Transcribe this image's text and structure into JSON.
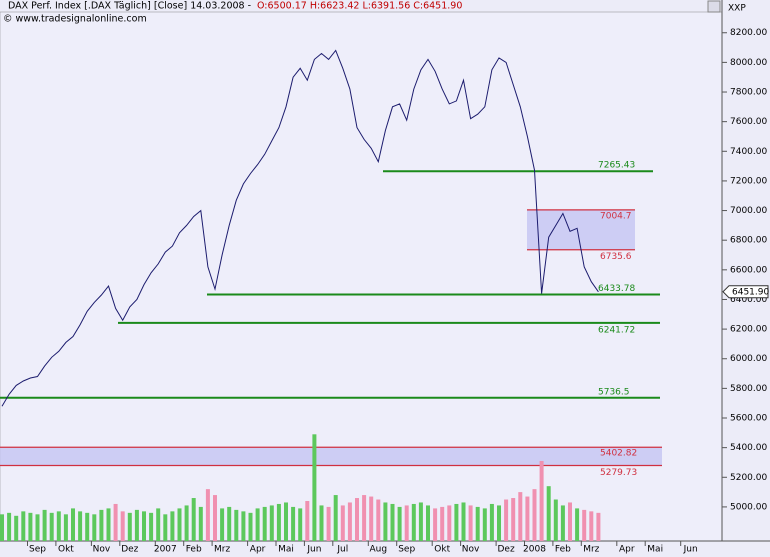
{
  "chart_data": {
    "type": "line",
    "title": "DAX Perf. Index [.DAX  Täglich] [Close] 14.03.2008 -",
    "ohlc": "O:6500.17 H:6623.42 L:6391.56 C:6451.90",
    "source": "© www.tradesignalonline.com",
    "axis_unit": "XXP",
    "last_label": "6451.90",
    "categories": [
      null,
      null,
      null,
      null,
      null,
      "Sep",
      null,
      null,
      null,
      "Okt",
      null,
      null,
      null,
      null,
      "Nov",
      null,
      null,
      null,
      "Dez",
      null,
      null,
      null,
      null,
      "2007",
      null,
      null,
      null,
      "Feb",
      null,
      null,
      null,
      "Mrz",
      null,
      null,
      null,
      null,
      "Apr",
      null,
      null,
      null,
      "Mai",
      null,
      null,
      null,
      "Jun",
      null,
      null,
      null,
      "Jul",
      null,
      null,
      null,
      null,
      "Aug",
      null,
      null,
      null,
      "Sep",
      null,
      null,
      null,
      null,
      "Okt",
      null,
      null,
      null,
      "Nov",
      null,
      null,
      null,
      null,
      "Dez",
      null,
      null,
      null,
      "2008",
      null,
      null,
      null,
      "Feb",
      null,
      null,
      null,
      "Mrz",
      null,
      null,
      null,
      null,
      "Apr",
      null,
      null,
      null,
      "Mai",
      null,
      null,
      null,
      null,
      "Jun",
      null,
      null
    ],
    "series": [
      {
        "name": "DAX",
        "color": "#1c1c6e",
        "values": [
          5680,
          5760,
          5820,
          5850,
          5870,
          5880,
          5950,
          6010,
          6050,
          6110,
          6150,
          6230,
          6320,
          6380,
          6430,
          6490,
          6340,
          6260,
          6350,
          6400,
          6500,
          6580,
          6640,
          6720,
          6760,
          6850,
          6900,
          6960,
          7000,
          6620,
          6470,
          6700,
          6900,
          7070,
          7180,
          7250,
          7310,
          7380,
          7470,
          7560,
          7700,
          7900,
          7960,
          7880,
          8020,
          8060,
          8020,
          8080,
          7960,
          7820,
          7560,
          7480,
          7420,
          7330,
          7540,
          7700,
          7720,
          7610,
          7820,
          7950,
          8020,
          7940,
          7820,
          7720,
          7740,
          7880,
          7620,
          7650,
          7700,
          7950,
          8030,
          8000,
          7850,
          7700,
          7500,
          7273,
          6440,
          6820,
          6900,
          6980,
          6860,
          6880,
          6620,
          6520,
          6451.9,
          null,
          null,
          null,
          null,
          null,
          null,
          null,
          null,
          null,
          null,
          null,
          null,
          null,
          null,
          null
        ]
      },
      {
        "name": "Volume",
        "up_color": "#5cc85c",
        "down_color": "#f090b0",
        "values": [
          4950,
          4960,
          4940,
          4970,
          4960,
          4950,
          4980,
          4960,
          4970,
          4950,
          4990,
          4970,
          4960,
          4950,
          4980,
          4990,
          5020,
          4970,
          4960,
          4980,
          4970,
          4960,
          4990,
          4950,
          4970,
          4990,
          5010,
          5060,
          5000,
          5120,
          5080,
          4990,
          5000,
          4980,
          4970,
          4960,
          4990,
          5000,
          5010,
          5020,
          5030,
          5000,
          4990,
          5040,
          5490,
          5010,
          5000,
          5080,
          5010,
          5030,
          5060,
          5080,
          5070,
          5050,
          5030,
          5020,
          5000,
          5010,
          5020,
          5030,
          5010,
          4990,
          5000,
          5010,
          5020,
          5030,
          5010,
          5000,
          4990,
          5020,
          5010,
          5050,
          5060,
          5100,
          5070,
          5120,
          5310,
          5140,
          5050,
          5010,
          5030,
          4990,
          4980,
          4970,
          4960,
          null,
          null,
          null,
          null,
          null,
          null,
          null,
          null,
          null,
          null,
          null,
          null,
          null,
          null,
          null
        ]
      }
    ],
    "levels": [
      {
        "value": 7265.43,
        "color": "#1a8a1a"
      },
      {
        "value": 6433.78,
        "color": "#1a8a1a"
      },
      {
        "value": 6241.72,
        "color": "#1a8a1a"
      },
      {
        "value": 5736.5,
        "color": "#1a8a1a"
      }
    ],
    "zones": [
      {
        "high": 7004.7,
        "low": 6735.6,
        "color": "#d03040",
        "fill": "#c4c4f2"
      },
      {
        "high": 5402.82,
        "low": 5279.73,
        "color": "#d03040",
        "fill": "#c4c4f2"
      }
    ],
    "ylim": [
      4770,
      8340
    ],
    "yticks": [
      {
        "value": 5000,
        "label": "5000.00"
      },
      {
        "value": 5200,
        "label": "5200.00"
      },
      {
        "value": 5400,
        "label": "5400.00"
      },
      {
        "value": 5600,
        "label": "5600.00"
      },
      {
        "value": 5800,
        "label": "5800.00"
      },
      {
        "value": 6000,
        "label": "6000.00"
      },
      {
        "value": 6200,
        "label": "6200.00"
      },
      {
        "value": 6400,
        "label": "6400.00"
      },
      {
        "value": 6600,
        "label": "6600.00"
      },
      {
        "value": 6800,
        "label": "6800.00"
      },
      {
        "value": 7000,
        "label": "7000.00"
      },
      {
        "value": 7200,
        "label": "7200.00"
      },
      {
        "value": 7400,
        "label": "7400.00"
      },
      {
        "value": 7600,
        "label": "7600.00"
      },
      {
        "value": 7800,
        "label": "7800.00"
      },
      {
        "value": 8000,
        "label": "8000.00"
      },
      {
        "value": 8200,
        "label": "8200.00"
      }
    ]
  }
}
